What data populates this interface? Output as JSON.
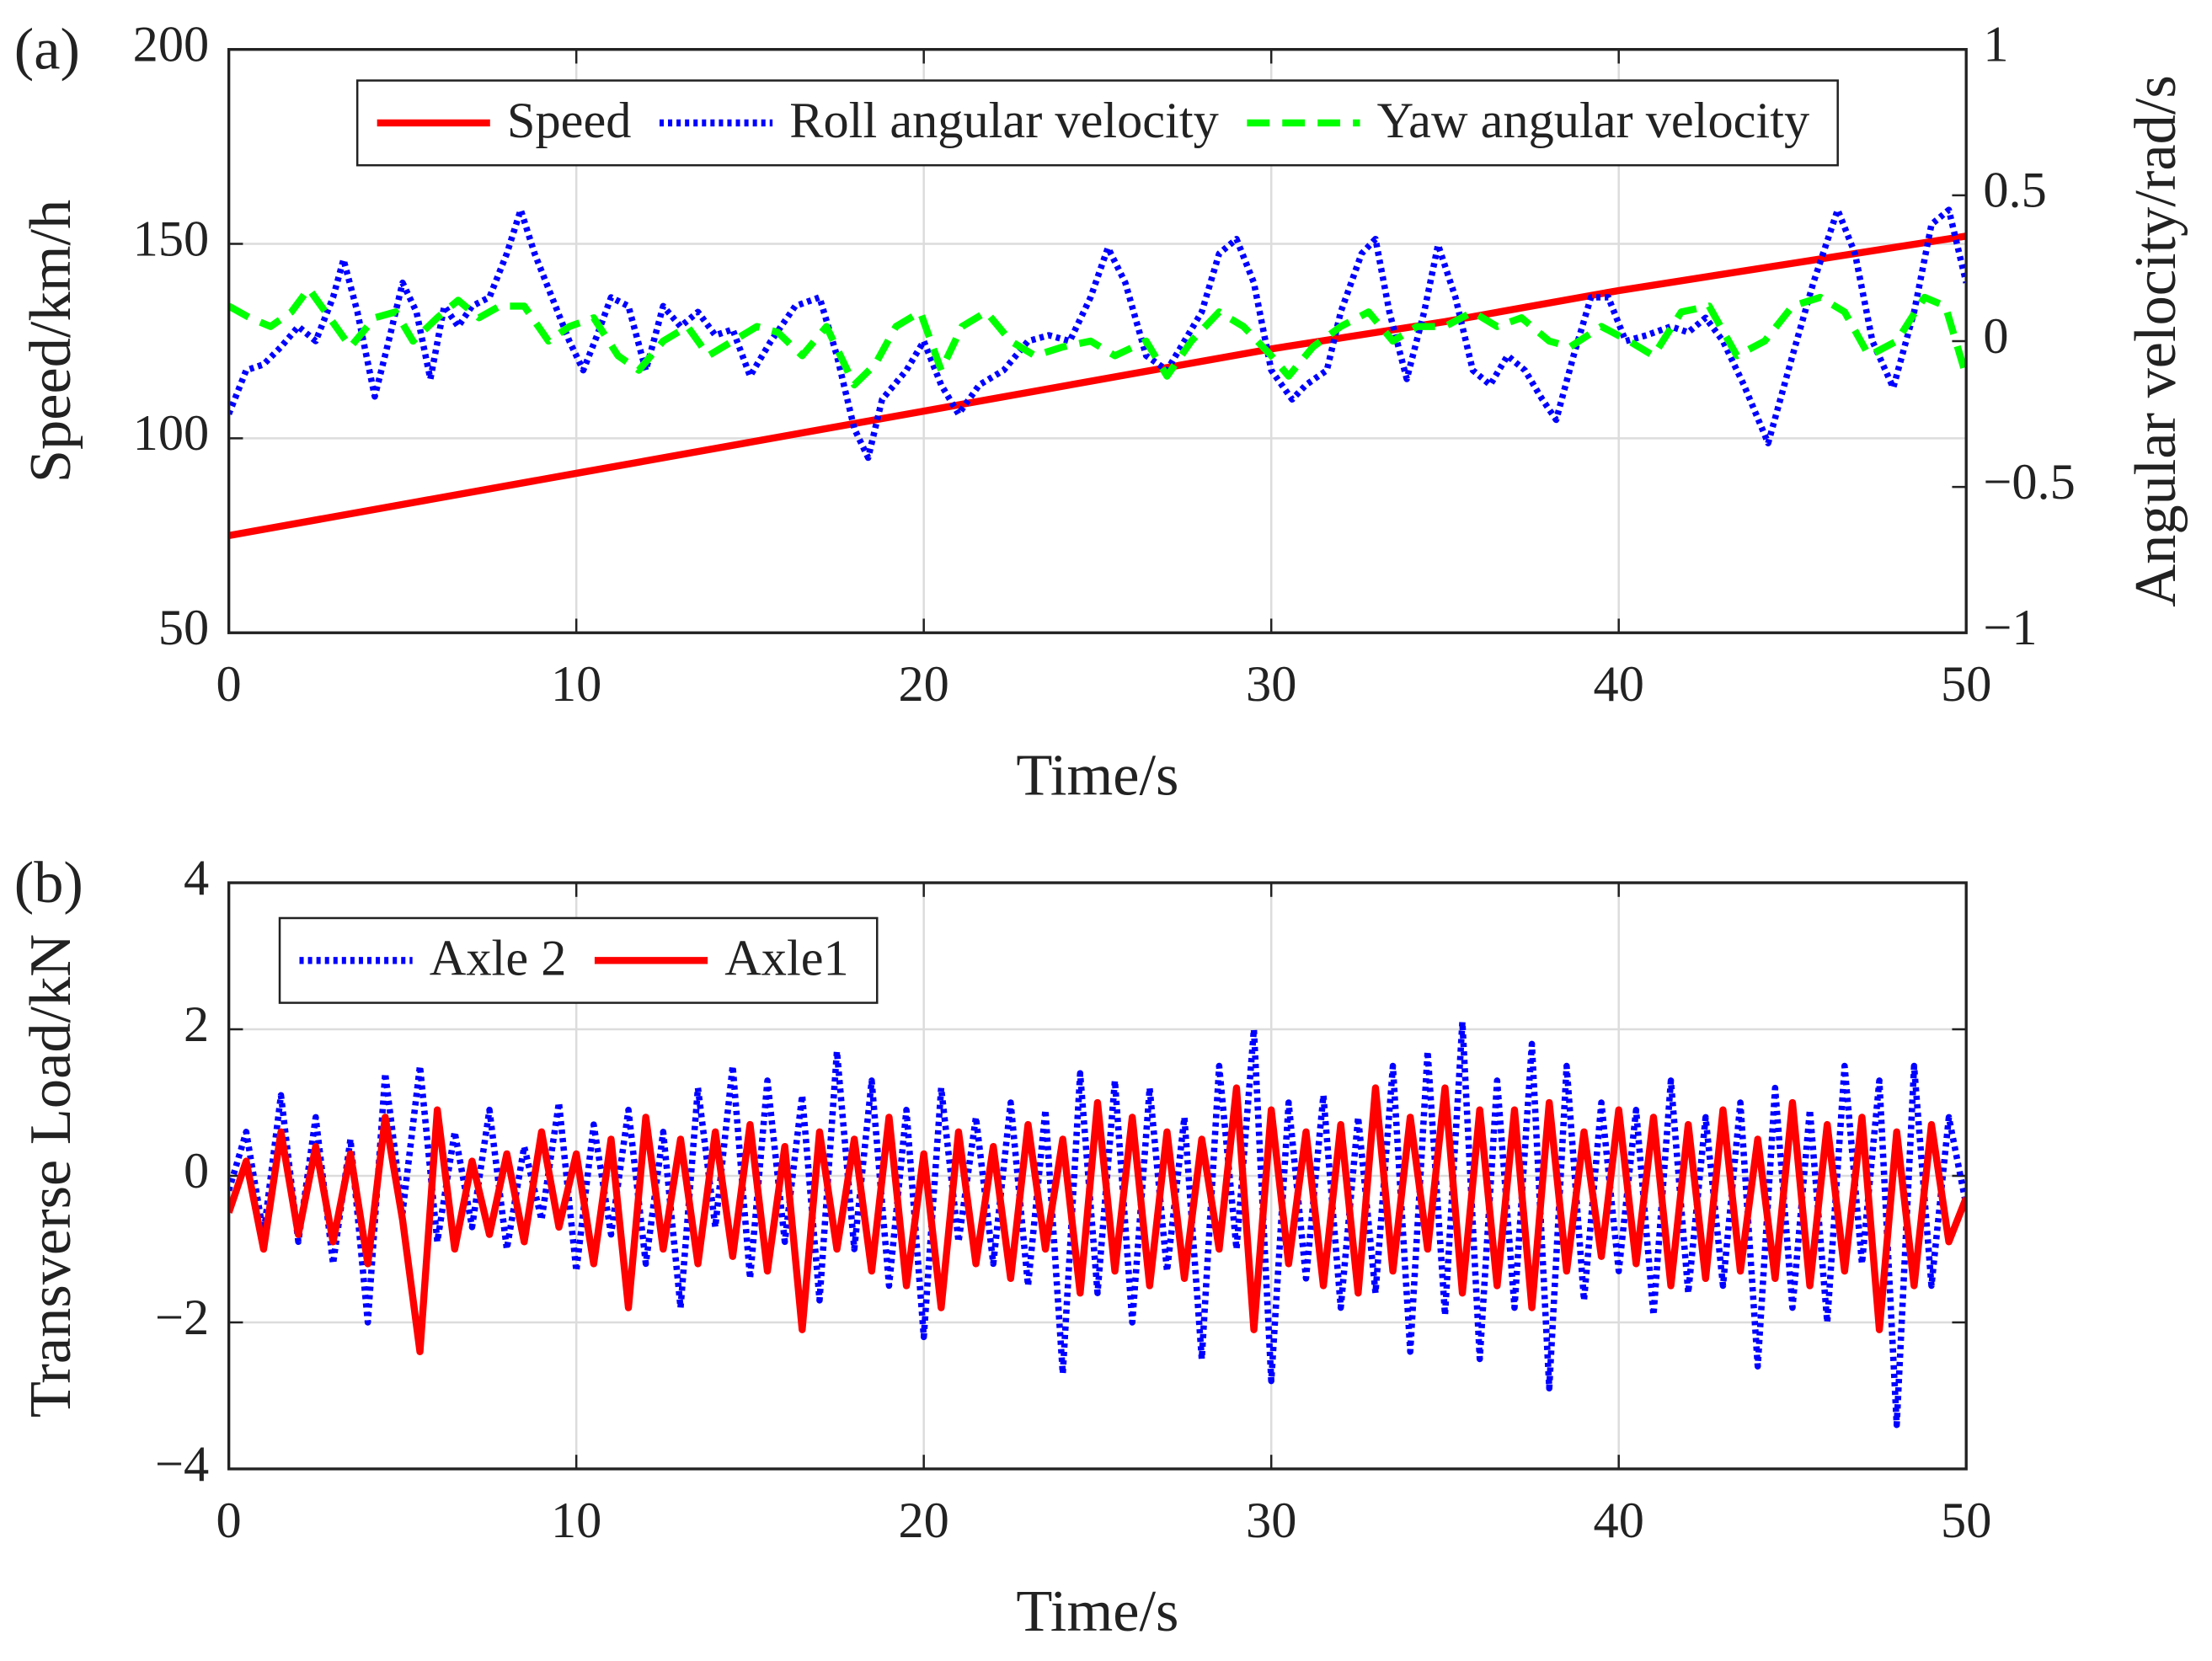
{
  "chart_data": [
    {
      "type": "line",
      "panel_label": "(a)",
      "xlabel": "Time/s",
      "ylabel": "Speed/km/h",
      "y2label": "Angular velocity/rad/s",
      "xlim": [
        0,
        50
      ],
      "xticks": [
        0,
        10,
        20,
        30,
        40,
        50
      ],
      "ylim": [
        50,
        200
      ],
      "yticks": [
        50,
        100,
        150,
        200
      ],
      "y2lim": [
        -1,
        1
      ],
      "y2ticks": [
        {
          "value": -1,
          "label": "−1"
        },
        {
          "value": -0.5,
          "label": "−0.5"
        },
        0,
        0.5,
        1
      ],
      "grid": true,
      "legend": "upper center",
      "series": [
        {
          "name": "Speed",
          "color": "#ff0000",
          "linestyle": "solid",
          "x": [
            0,
            5,
            10,
            15,
            20,
            25,
            30,
            35,
            40,
            45,
            50
          ],
          "values": [
            75,
            83,
            91,
            99,
            107,
            115,
            123,
            130,
            138,
            145,
            152
          ]
        },
        {
          "name": "Roll angular velocity",
          "color": "#0000ff",
          "linestyle": "dotted",
          "axis": "y2",
          "x": [
            0,
            0.5,
            1,
            1.5,
            2,
            2.5,
            3,
            3.3,
            3.7,
            4.2,
            4.6,
            5,
            5.4,
            5.8,
            6.2,
            6.6,
            7,
            7.5,
            8,
            8.4,
            8.8,
            9.3,
            9.8,
            10.2,
            10.6,
            11,
            11.5,
            12,
            12.5,
            13,
            13.5,
            14,
            14.5,
            15,
            15.6,
            16.3,
            17,
            17.5,
            18,
            18.4,
            18.8,
            19.5,
            20,
            20.5,
            21,
            21.6,
            22.3,
            23,
            23.6,
            24.2,
            24.8,
            25.3,
            25.8,
            26.4,
            27,
            27.5,
            28,
            28.5,
            29,
            29.5,
            30,
            30.6,
            31,
            31.6,
            32,
            32.6,
            33,
            33.4,
            33.9,
            34.4,
            34.8,
            35.3,
            35.8,
            36.3,
            36.8,
            37.3,
            37.8,
            38.2,
            38.7,
            39.2,
            39.7,
            40.2,
            40.8,
            41.5,
            42,
            42.5,
            43,
            43.6,
            44.3,
            45,
            45.6,
            46.3,
            46.8,
            47.3,
            47.9,
            48.5,
            49,
            49.5,
            50
          ],
          "values": [
            -0.25,
            -0.1,
            -0.08,
            -0.02,
            0.05,
            0.0,
            0.15,
            0.28,
            0.1,
            -0.19,
            0.0,
            0.2,
            0.1,
            -0.13,
            0.12,
            0.05,
            0.12,
            0.15,
            0.3,
            0.45,
            0.3,
            0.15,
            0.0,
            -0.1,
            0.02,
            0.15,
            0.12,
            -0.1,
            0.12,
            0.05,
            0.1,
            0.02,
            0.04,
            -0.12,
            0.0,
            0.12,
            0.15,
            -0.05,
            -0.3,
            -0.4,
            -0.2,
            -0.1,
            0.0,
            -0.15,
            -0.25,
            -0.15,
            -0.1,
            0.0,
            0.02,
            0.0,
            0.15,
            0.32,
            0.2,
            -0.05,
            -0.1,
            0.0,
            0.1,
            0.3,
            0.35,
            0.2,
            -0.1,
            -0.2,
            -0.15,
            -0.1,
            0.1,
            0.3,
            0.35,
            0.1,
            -0.13,
            0.1,
            0.33,
            0.15,
            -0.1,
            -0.15,
            -0.05,
            -0.1,
            -0.2,
            -0.27,
            -0.05,
            0.15,
            0.15,
            0.0,
            0.02,
            0.05,
            0.03,
            0.08,
            0.0,
            -0.15,
            -0.35,
            -0.05,
            0.2,
            0.45,
            0.3,
            0.0,
            -0.16,
            0.1,
            0.4,
            0.45,
            0.2
          ]
        },
        {
          "name": "Yaw angular velocity",
          "color": "#00ff00",
          "linestyle": "dashed",
          "axis": "y2",
          "x": [
            0,
            0.6,
            1.2,
            1.8,
            2.3,
            2.9,
            3.5,
            4.2,
            4.8,
            5.3,
            6,
            6.6,
            7.2,
            7.8,
            8.5,
            9.2,
            9.8,
            10.5,
            11.2,
            11.8,
            12.5,
            13.2,
            13.8,
            14.5,
            15.2,
            15.8,
            16.5,
            17.2,
            18,
            18.6,
            19.2,
            19.9,
            20.5,
            21.1,
            21.8,
            22.5,
            23.2,
            24,
            24.8,
            25.5,
            26.4,
            27,
            27.7,
            28.5,
            29.2,
            30,
            30.5,
            31.2,
            32,
            32.8,
            33.5,
            34.2,
            35,
            35.8,
            36.5,
            37.2,
            38,
            38.6,
            39.5,
            40.3,
            41,
            41.8,
            42.6,
            43.4,
            44.2,
            45,
            45.8,
            46.5,
            47.2,
            48,
            48.8,
            49.4,
            50
          ],
          "values": [
            0.12,
            0.08,
            0.05,
            0.1,
            0.18,
            0.08,
            -0.02,
            0.08,
            0.1,
            0.0,
            0.08,
            0.14,
            0.08,
            0.12,
            0.12,
            0.0,
            0.05,
            0.08,
            -0.05,
            -0.1,
            0.0,
            0.05,
            -0.05,
            0.0,
            0.05,
            0.03,
            -0.05,
            0.05,
            -0.15,
            -0.08,
            0.05,
            0.1,
            -0.1,
            0.05,
            0.1,
            0.0,
            -0.05,
            -0.02,
            0.0,
            -0.05,
            0.0,
            -0.12,
            0.0,
            0.1,
            0.05,
            -0.05,
            -0.12,
            -0.02,
            0.05,
            0.1,
            0.0,
            0.05,
            0.05,
            0.1,
            0.05,
            0.08,
            0.0,
            -0.02,
            0.05,
            0.0,
            -0.05,
            0.1,
            0.12,
            -0.05,
            0.0,
            0.12,
            0.15,
            0.1,
            -0.05,
            0.0,
            0.15,
            0.12,
            -0.12
          ]
        }
      ]
    },
    {
      "type": "line",
      "panel_label": "(b)",
      "xlabel": "Time/s",
      "ylabel": "Transverse Load/kN",
      "xlim": [
        0,
        50
      ],
      "xticks": [
        0,
        10,
        20,
        30,
        40,
        50
      ],
      "ylim": [
        -4,
        4
      ],
      "yticks": [
        {
          "value": -4,
          "label": "−4"
        },
        {
          "value": -2,
          "label": "−2"
        },
        0,
        2,
        4
      ],
      "grid": true,
      "legend": "upper left",
      "x": [
        0,
        0.5,
        1,
        1.5,
        2,
        2.5,
        3,
        3.5,
        4,
        4.5,
        5,
        5.5,
        6,
        6.5,
        7,
        7.5,
        8,
        8.5,
        9,
        9.5,
        10,
        10.5,
        11,
        11.5,
        12,
        12.5,
        13,
        13.5,
        14,
        14.5,
        15,
        15.5,
        16,
        16.5,
        17,
        17.5,
        18,
        18.5,
        19,
        19.5,
        20,
        20.5,
        21,
        21.5,
        22,
        22.5,
        23,
        23.5,
        24,
        24.5,
        25,
        25.5,
        26,
        26.5,
        27,
        27.5,
        28,
        28.5,
        29,
        29.5,
        30,
        30.5,
        31,
        31.5,
        32,
        32.5,
        33,
        33.5,
        34,
        34.5,
        35,
        35.5,
        36,
        36.5,
        37,
        37.5,
        38,
        38.5,
        39,
        39.5,
        40,
        40.5,
        41,
        41.5,
        42,
        42.5,
        43,
        43.5,
        44,
        44.5,
        45,
        45.5,
        46,
        46.5,
        47,
        47.5,
        48,
        48.5,
        49,
        49.5,
        50
      ],
      "series": [
        {
          "name": "Axle 2",
          "color": "#0000ff",
          "linestyle": "dotted",
          "values": [
            -0.2,
            0.6,
            -0.8,
            1.1,
            -0.9,
            0.8,
            -1.2,
            0.5,
            -2.0,
            1.4,
            -0.5,
            1.5,
            -0.9,
            0.6,
            -0.7,
            0.9,
            -1.0,
            0.4,
            -0.6,
            1.0,
            -1.3,
            0.7,
            -0.8,
            0.9,
            -1.2,
            0.6,
            -1.8,
            1.2,
            -0.7,
            1.5,
            -1.4,
            1.3,
            -0.9,
            1.1,
            -1.7,
            1.7,
            -1.0,
            1.3,
            -1.5,
            0.9,
            -2.2,
            1.2,
            -0.9,
            0.8,
            -1.2,
            1.0,
            -1.5,
            0.9,
            -2.7,
            1.4,
            -1.6,
            1.3,
            -2.0,
            1.2,
            -1.3,
            0.8,
            -2.5,
            1.5,
            -1.0,
            2.0,
            -2.8,
            1.0,
            -1.4,
            1.1,
            -1.8,
            0.8,
            -1.6,
            1.5,
            -2.4,
            1.7,
            -1.9,
            2.1,
            -2.5,
            1.3,
            -1.8,
            1.8,
            -2.9,
            1.5,
            -1.7,
            1.0,
            -1.3,
            0.9,
            -1.9,
            1.3,
            -1.6,
            0.8,
            -1.5,
            1.0,
            -2.6,
            1.2,
            -1.8,
            0.9,
            -2.0,
            1.5,
            -1.2,
            1.3,
            -3.4,
            1.5,
            -1.5,
            0.8,
            -0.4
          ]
        },
        {
          "name": "Axle1",
          "color": "#ff0000",
          "linestyle": "solid",
          "values": [
            -0.5,
            0.2,
            -1.0,
            0.6,
            -0.8,
            0.4,
            -0.9,
            0.3,
            -1.2,
            0.8,
            -0.6,
            -2.4,
            0.9,
            -1.0,
            0.2,
            -0.8,
            0.3,
            -0.9,
            0.6,
            -0.7,
            0.3,
            -1.2,
            0.5,
            -1.8,
            0.8,
            -1.0,
            0.5,
            -1.2,
            0.6,
            -1.1,
            0.7,
            -1.3,
            0.4,
            -2.1,
            0.6,
            -1.0,
            0.5,
            -1.3,
            0.8,
            -1.5,
            0.3,
            -1.8,
            0.6,
            -1.2,
            0.4,
            -1.4,
            0.7,
            -1.0,
            0.5,
            -1.6,
            1.0,
            -1.3,
            0.8,
            -1.5,
            0.6,
            -1.4,
            0.5,
            -1.0,
            1.2,
            -2.1,
            0.9,
            -1.2,
            0.6,
            -1.5,
            0.7,
            -1.6,
            1.2,
            -1.3,
            0.8,
            -1.0,
            1.2,
            -1.6,
            0.9,
            -1.5,
            0.9,
            -1.8,
            1.0,
            -1.3,
            0.6,
            -1.1,
            0.9,
            -1.2,
            0.8,
            -1.5,
            0.7,
            -1.4,
            0.9,
            -1.3,
            0.5,
            -1.4,
            1.0,
            -1.5,
            0.7,
            -1.3,
            0.8,
            -2.1,
            0.6,
            -1.5,
            0.7,
            -0.9,
            -0.3
          ]
        }
      ]
    }
  ]
}
